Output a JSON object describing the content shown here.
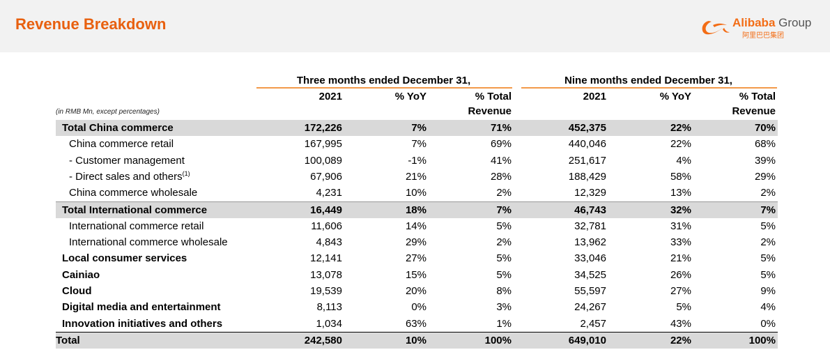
{
  "title": "Revenue Breakdown",
  "logo": {
    "brand": "Alibaba",
    "group": " Group",
    "chinese": "阿里巴巴集团",
    "icon": "alibaba-logo-icon",
    "color": "#f36d16"
  },
  "colors": {
    "title": "#e8600f",
    "accent_line": "#f39a4a",
    "shade": "#d9d9d9",
    "header_band": "#f2f2f2"
  },
  "table": {
    "units_note": "(in RMB Mn, except percentages)",
    "group_headers": [
      "Three months ended December 31,",
      "Nine months ended December 31,"
    ],
    "column_headers": [
      {
        "line1": "",
        "line2": "2021"
      },
      {
        "line1": "",
        "line2": "% YoY"
      },
      {
        "line1": "% Total",
        "line2": "Revenue"
      },
      {
        "line1": "",
        "line2": "2021"
      },
      {
        "line1": "",
        "line2": "% YoY"
      },
      {
        "line1": "% Total",
        "line2": "Revenue"
      }
    ],
    "rows": [
      {
        "label": "Total China commerce",
        "values": [
          "172,226",
          "7%",
          "71%",
          "452,375",
          "22%",
          "70%"
        ]
      },
      {
        "label": "China commerce retail",
        "values": [
          "167,995",
          "7%",
          "69%",
          "440,046",
          "22%",
          "68%"
        ]
      },
      {
        "label": "- Customer management",
        "values": [
          "100,089",
          "-1%",
          "41%",
          "251,617",
          "4%",
          "39%"
        ]
      },
      {
        "label": "- Direct sales and others",
        "footnote": "(1)",
        "values": [
          "67,906",
          "21%",
          "28%",
          "188,429",
          "58%",
          "29%"
        ]
      },
      {
        "label": "China commerce wholesale",
        "values": [
          "4,231",
          "10%",
          "2%",
          "12,329",
          "13%",
          "2%"
        ]
      },
      {
        "label": "Total International commerce",
        "values": [
          "16,449",
          "18%",
          "7%",
          "46,743",
          "32%",
          "7%"
        ]
      },
      {
        "label": "International commerce retail",
        "values": [
          "11,606",
          "14%",
          "5%",
          "32,781",
          "31%",
          "5%"
        ]
      },
      {
        "label": "International commerce wholesale",
        "values": [
          "4,843",
          "29%",
          "2%",
          "13,962",
          "33%",
          "2%"
        ]
      },
      {
        "label": "Local consumer services",
        "values": [
          "12,141",
          "27%",
          "5%",
          "33,046",
          "21%",
          "5%"
        ]
      },
      {
        "label": "Cainiao",
        "values": [
          "13,078",
          "15%",
          "5%",
          "34,525",
          "26%",
          "5%"
        ]
      },
      {
        "label": "Cloud",
        "values": [
          "19,539",
          "20%",
          "8%",
          "55,597",
          "27%",
          "9%"
        ]
      },
      {
        "label": "Digital media and entertainment",
        "values": [
          "8,113",
          "0%",
          "3%",
          "24,267",
          "5%",
          "4%"
        ]
      },
      {
        "label": "Innovation initiatives and others",
        "values": [
          "1,034",
          "63%",
          "1%",
          "2,457",
          "43%",
          "0%"
        ]
      },
      {
        "label": "Total",
        "values": [
          "242,580",
          "10%",
          "100%",
          "649,010",
          "22%",
          "100%"
        ]
      }
    ]
  }
}
